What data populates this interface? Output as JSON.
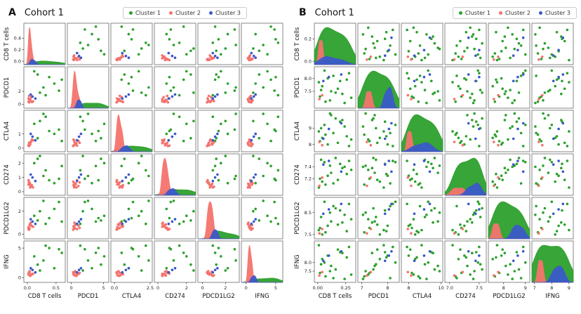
{
  "legend": {
    "items": [
      {
        "label": "Cluster 1",
        "color": "#2ca02c"
      },
      {
        "label": "Cluster 2",
        "color": "#f4736d"
      },
      {
        "label": "Cluster 3",
        "color": "#3a58c8"
      }
    ]
  },
  "chart_data": {
    "type": "scatter",
    "subtype": "pairplot-matrix",
    "diagonal": "kde",
    "panels": [
      {
        "label": "A",
        "title": "Cohort 1",
        "variables": [
          {
            "name": "CD8 T cells",
            "range": [
              -0.06,
              0.66
            ],
            "x_ticks": [
              {
                "v": 0.0,
                "label": "0.0"
              },
              {
                "v": 0.5,
                "label": "0.5"
              }
            ],
            "y_ticks": [
              {
                "v": 0.0,
                "label": "0.0"
              },
              {
                "v": 0.2,
                "label": "0.2"
              },
              {
                "v": 0.4,
                "label": "0.4"
              }
            ]
          },
          {
            "name": "PDCD1",
            "range": [
              -0.6,
              5.8
            ],
            "x_ticks": [
              {
                "v": 0,
                "label": "0"
              },
              {
                "v": 5,
                "label": "5"
              }
            ],
            "y_ticks": [
              {
                "v": 0,
                "label": "0"
              },
              {
                "v": 2,
                "label": "2"
              }
            ]
          },
          {
            "name": "CTLA4",
            "range": [
              -0.25,
              2.65
            ],
            "x_ticks": [
              {
                "v": 0.0,
                "label": "0.0"
              },
              {
                "v": 2.5,
                "label": "2.5"
              }
            ],
            "y_ticks": [
              {
                "v": 0,
                "label": "0"
              },
              {
                "v": 1,
                "label": "1"
              }
            ]
          },
          {
            "name": "CD274",
            "range": [
              -0.25,
              2.65
            ],
            "x_ticks": [
              {
                "v": 0,
                "label": "0"
              },
              {
                "v": 2,
                "label": "2"
              }
            ],
            "y_ticks": [
              {
                "v": 0,
                "label": "0"
              },
              {
                "v": 1,
                "label": "1"
              },
              {
                "v": 2,
                "label": "2"
              }
            ]
          },
          {
            "name": "PDCD1LG2",
            "range": [
              -0.4,
              3.2
            ],
            "x_ticks": [
              {
                "v": 0,
                "label": "0"
              },
              {
                "v": 2,
                "label": "2"
              }
            ],
            "y_ticks": [
              {
                "v": 0,
                "label": "0"
              },
              {
                "v": 2,
                "label": "2"
              }
            ]
          },
          {
            "name": "IFNG",
            "range": [
              -0.8,
              6.2
            ],
            "x_ticks": [
              {
                "v": 0,
                "label": "0"
              },
              {
                "v": 5,
                "label": "5"
              }
            ],
            "y_ticks": [
              {
                "v": 0,
                "label": "0"
              },
              {
                "v": 5,
                "label": "5"
              }
            ]
          }
        ],
        "clusters": [
          {
            "name": "Cluster 1",
            "color": "#2ca02c",
            "points": [
              [
                0.55,
                2.1,
                1.3,
                0.9,
                2.8,
                4.8
              ],
              [
                0.18,
                4.6,
                0.7,
                2.3,
                1.2,
                2.2
              ],
              [
                0.32,
                1.4,
                2.2,
                1.5,
                0.9,
                5.4
              ],
              [
                0.47,
                3.2,
                1.0,
                0.6,
                2.2,
                1.6
              ],
              [
                0.12,
                5.1,
                1.7,
                2.0,
                1.6,
                3.6
              ],
              [
                0.28,
                2.6,
                2.4,
                1.1,
                2.9,
                2.9
              ],
              [
                0.6,
                3.8,
                0.5,
                1.8,
                1.1,
                4.2
              ],
              [
                0.22,
                1.8,
                1.9,
                2.5,
                2.0,
                1.2
              ],
              [
                0.38,
                4.2,
                1.2,
                0.8,
                1.4,
                5.0
              ]
            ]
          },
          {
            "name": "Cluster 2",
            "color": "#f4736d",
            "points": [
              [
                0.02,
                0.4,
                0.2,
                0.5,
                0.6,
                0.5
              ],
              [
                0.05,
                0.8,
                0.35,
                0.3,
                0.9,
                0.3
              ],
              [
                0.03,
                0.3,
                0.15,
                0.7,
                0.4,
                0.9
              ],
              [
                0.07,
                1.1,
                0.5,
                0.4,
                0.75,
                0.6
              ],
              [
                0.04,
                0.6,
                0.28,
                0.6,
                0.5,
                1.1
              ],
              [
                0.06,
                0.5,
                0.42,
                0.35,
                1.0,
                0.4
              ],
              [
                0.02,
                0.9,
                0.18,
                0.8,
                0.45,
                0.7
              ],
              [
                0.08,
                0.35,
                0.6,
                0.45,
                0.7,
                0.55
              ],
              [
                0.05,
                0.7,
                0.25,
                0.55,
                0.85,
                0.35
              ],
              [
                0.03,
                1.3,
                0.38,
                0.65,
                0.55,
                0.8
              ],
              [
                0.1,
                0.45,
                0.55,
                0.3,
                0.65,
                0.65
              ],
              [
                0.04,
                0.6,
                0.3,
                0.5,
                0.8,
                1.0
              ]
            ]
          },
          {
            "name": "Cluster 3",
            "color": "#3a58c8",
            "points": [
              [
                0.09,
                1.2,
                0.8,
                1.0,
                1.1,
                1.3
              ],
              [
                0.14,
                0.9,
                0.55,
                0.75,
                0.9,
                0.9
              ],
              [
                0.06,
                1.5,
                1.0,
                1.2,
                1.3,
                1.6
              ]
            ]
          }
        ]
      },
      {
        "label": "B",
        "title": "Cohort 1",
        "variables": [
          {
            "name": "CD8 T cells",
            "range": [
              -0.03,
              0.34
            ],
            "x_ticks": [
              {
                "v": 0.0,
                "label": "0.00"
              },
              {
                "v": 0.25,
                "label": "0.25"
              }
            ],
            "y_ticks": [
              {
                "v": 0.0,
                "label": "0.0"
              },
              {
                "v": 0.2,
                "label": "0.2"
              }
            ]
          },
          {
            "name": "PDCD1",
            "range": [
              6.85,
              8.45
            ],
            "x_ticks": [
              {
                "v": 7,
                "label": "7"
              },
              {
                "v": 8,
                "label": "8"
              }
            ],
            "y_ticks": [
              {
                "v": 7.5,
                "label": "7.5"
              },
              {
                "v": 8.0,
                "label": "8.0"
              }
            ]
          },
          {
            "name": "CTLA4",
            "range": [
              7.55,
              10.1
            ],
            "x_ticks": [
              {
                "v": 8,
                "label": "8"
              },
              {
                "v": 10,
                "label": "10"
              }
            ],
            "y_ticks": [
              {
                "v": 8,
                "label": "8"
              },
              {
                "v": 9,
                "label": "9"
              }
            ]
          },
          {
            "name": "CD274",
            "range": [
              6.92,
              7.62
            ],
            "x_ticks": [
              {
                "v": 7.0,
                "label": "7.0"
              },
              {
                "v": 7.5,
                "label": "7.5"
              }
            ],
            "y_ticks": [
              {
                "v": 7.2,
                "label": "7.2"
              },
              {
                "v": 7.4,
                "label": "7.4"
              }
            ]
          },
          {
            "name": "PDCD1LG2",
            "range": [
              7.3,
              9.2
            ],
            "x_ticks": [
              {
                "v": 8,
                "label": "8"
              },
              {
                "v": 9,
                "label": "9"
              }
            ],
            "y_ticks": [
              {
                "v": 7.5,
                "label": "7.5"
              },
              {
                "v": 8.5,
                "label": "8.5"
              }
            ]
          },
          {
            "name": "IFNG",
            "range": [
              6.85,
              9.25
            ],
            "x_ticks": [
              {
                "v": 7,
                "label": "7"
              },
              {
                "v": 8,
                "label": "8"
              },
              {
                "v": 9,
                "label": "9"
              }
            ],
            "y_ticks": [
              {
                "v": 7.5,
                "label": "7.5"
              },
              {
                "v": 8.0,
                "label": "8.0"
              }
            ]
          }
        ],
        "clusters": [
          {
            "name": "Cluster 1",
            "color": "#2ca02c",
            "points": [
              [
                0.02,
                7.3,
                8.2,
                7.2,
                7.8,
                7.4
              ],
              [
                0.2,
                7.9,
                9.4,
                7.45,
                8.6,
                8.6
              ],
              [
                0.07,
                7.1,
                8.6,
                7.1,
                7.6,
                7.2
              ],
              [
                0.28,
                8.2,
                7.9,
                7.5,
                8.9,
                8.9
              ],
              [
                0.12,
                7.5,
                9.8,
                7.3,
                8.1,
                7.8
              ],
              [
                0.04,
                7.7,
                8.4,
                7.15,
                7.5,
                8.2
              ],
              [
                0.24,
                7.05,
                9.1,
                7.4,
                8.4,
                7.05
              ],
              [
                0.09,
                8.0,
                8.0,
                7.25,
                7.9,
                8.4
              ],
              [
                0.16,
                7.45,
                9.6,
                7.55,
                8.7,
                7.6
              ],
              [
                0.01,
                7.85,
                8.8,
                7.05,
                7.7,
                9.0
              ],
              [
                0.3,
                7.25,
                8.3,
                7.35,
                8.2,
                7.3
              ],
              [
                0.06,
                8.3,
                9.2,
                7.48,
                9.0,
                8.0
              ],
              [
                0.18,
                7.6,
                8.1,
                7.18,
                7.95,
                8.75
              ],
              [
                0.11,
                7.15,
                9.9,
                7.42,
                8.5,
                7.5
              ],
              [
                0.26,
                7.95,
                8.5,
                7.28,
                7.65,
                8.3
              ],
              [
                0.03,
                7.55,
                9.0,
                7.52,
                8.3,
                7.9
              ],
              [
                0.14,
                8.1,
                8.7,
                7.12,
                8.8,
                7.1
              ],
              [
                0.22,
                7.4,
                9.5,
                7.38,
                8.05,
                8.55
              ]
            ]
          },
          {
            "name": "Cluster 2",
            "color": "#f4736d",
            "points": [
              [
                0.015,
                7.2,
                8.15,
                7.08,
                7.55,
                7.25
              ],
              [
                0.04,
                7.35,
                7.95,
                7.22,
                7.75,
                7.45
              ]
            ]
          },
          {
            "name": "Cluster 3",
            "color": "#3a58c8",
            "points": [
              [
                0.05,
                7.9,
                8.35,
                7.44,
                8.45,
                8.1
              ],
              [
                0.1,
                8.05,
                8.95,
                7.5,
                8.65,
                8.4
              ],
              [
                0.21,
                8.15,
                9.3,
                7.32,
                8.9,
                8.65
              ]
            ]
          }
        ]
      }
    ]
  }
}
